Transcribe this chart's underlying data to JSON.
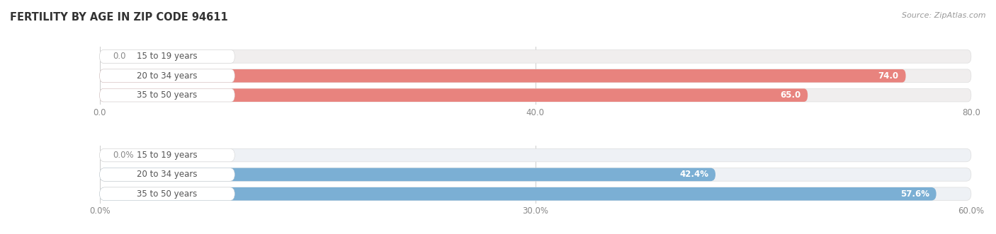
{
  "title": "FERTILITY BY AGE IN ZIP CODE 94611",
  "source": "Source: ZipAtlas.com",
  "top_bars": {
    "labels": [
      "15 to 19 years",
      "20 to 34 years",
      "35 to 50 years"
    ],
    "values": [
      0.0,
      74.0,
      65.0
    ],
    "xlim_max": 80.0,
    "xticks": [
      0.0,
      40.0,
      80.0
    ],
    "xtick_labels": [
      "0.0",
      "40.0",
      "80.0"
    ],
    "bar_color": "#E8837E",
    "bar_bg_color": "#F0EEEE",
    "label_bg_color": "#FFFFFF",
    "value_labels": [
      "0.0",
      "74.0",
      "65.0"
    ],
    "value_label_inside": [
      false,
      true,
      true
    ]
  },
  "bottom_bars": {
    "labels": [
      "15 to 19 years",
      "20 to 34 years",
      "35 to 50 years"
    ],
    "values": [
      0.0,
      42.4,
      57.6
    ],
    "xlim_max": 60.0,
    "xticks": [
      0.0,
      30.0,
      60.0
    ],
    "xtick_labels": [
      "0.0%",
      "30.0%",
      "60.0%"
    ],
    "bar_color": "#7BAFD4",
    "bar_bg_color": "#EEF1F5",
    "label_bg_color": "#FFFFFF",
    "value_labels": [
      "0.0%",
      "42.4%",
      "57.6%"
    ],
    "value_label_inside": [
      false,
      true,
      true
    ]
  },
  "bar_height": 0.68,
  "bar_spacing": 1.0,
  "label_fontsize": 8.5,
  "value_fontsize": 8.5,
  "axis_tick_fontsize": 8.5,
  "title_fontsize": 10.5,
  "source_fontsize": 8.0,
  "background_color": "#FFFFFF",
  "grid_color": "#CCCCCC",
  "text_color_dark": "#555555",
  "text_color_light": "#FFFFFF",
  "text_color_outside": "#888888"
}
